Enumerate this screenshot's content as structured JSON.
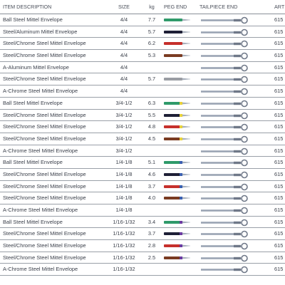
{
  "header": {
    "desc": "ITEM DESCRIPTION",
    "size": "SIZE",
    "kg": "kg",
    "peg": "PEG END",
    "tail": "TAILPIECE END",
    "art": "ART"
  },
  "rows": [
    {
      "desc": "Ball Steel Mittel Envelope",
      "size": "4/4",
      "kg": "7.7",
      "peg_color": "#2f9a6a",
      "art": "615"
    },
    {
      "desc": "Steel/Aluminum Mittel Envelope",
      "size": "4/4",
      "kg": "5.7",
      "peg_color": "#1e1f36",
      "art": "615"
    },
    {
      "desc": "Steel/Chrome Steel Mittel Envelope",
      "size": "4/4",
      "kg": "6.2",
      "peg_color": "#c6302c",
      "art": "615"
    },
    {
      "desc": "Steel/Chrome Steel Mittel Envelope",
      "size": "4/4",
      "kg": "5.3",
      "peg_color": "#7a3b22",
      "art": "615"
    },
    {
      "desc": "A-Aluminum Mittel Envelope",
      "size": "4/4",
      "kg": "",
      "peg_color": "",
      "art": "615"
    },
    {
      "desc": "Steel/Chrome Steel Mittel Envelope",
      "size": "4/4",
      "kg": "5.7",
      "peg_color": "#9a9da3",
      "art": "615"
    },
    {
      "desc": "A-Chrome Steel Mittel Envelope",
      "size": "4/4",
      "kg": "",
      "peg_color": "",
      "art": "615"
    },
    {
      "desc": "Ball Steel Mittel Envelope",
      "size": "3/4-1/2",
      "kg": "6.3",
      "peg_color": "#2f9a6a",
      "peg_band": "#e8d23a",
      "art": "615"
    },
    {
      "desc": "Steel/Chrome Steel Mittel Envelope",
      "size": "3/4-1/2",
      "kg": "5.5",
      "peg_color": "#1e1f36",
      "peg_band": "#e8d23a",
      "art": "615"
    },
    {
      "desc": "Steel/Chrome Steel Mittel Envelope",
      "size": "3/4-1/2",
      "kg": "4.8",
      "peg_color": "#c6302c",
      "peg_band": "#e8d23a",
      "art": "615"
    },
    {
      "desc": "Steel/Chrome Steel Mittel Envelope",
      "size": "3/4-1/2",
      "kg": "4.5",
      "peg_color": "#7a3b22",
      "peg_band": "#e8d23a",
      "art": "615"
    },
    {
      "desc": "A-Chrome Steel Mittel Envelope",
      "size": "3/4-1/2",
      "kg": "",
      "peg_color": "",
      "art": "615"
    },
    {
      "desc": "Ball Steel Mittel Envelope",
      "size": "1/4-1/8",
      "kg": "5.1",
      "peg_color": "#2f9a6a",
      "peg_band": "#3a5fb0",
      "art": "615"
    },
    {
      "desc": "Steel/Chrome Steel Mittel Envelope",
      "size": "1/4-1/8",
      "kg": "4.6",
      "peg_color": "#1e1f36",
      "peg_band": "#3a5fb0",
      "art": "615"
    },
    {
      "desc": "Steel/Chrome Steel Mittel Envelope",
      "size": "1/4-1/8",
      "kg": "3.7",
      "peg_color": "#c6302c",
      "peg_band": "#3a5fb0",
      "art": "615"
    },
    {
      "desc": "Steel/Chrome Steel Mittel Envelope",
      "size": "1/4-1/8",
      "kg": "4.0",
      "peg_color": "#7a3b22",
      "peg_band": "#3a5fb0",
      "art": "615"
    },
    {
      "desc": "A-Chrome Steel Mittel Envelope",
      "size": "1/4-1/8",
      "kg": "",
      "peg_color": "",
      "art": "615"
    },
    {
      "desc": "Ball Steel Mittel Envelope",
      "size": "1/16-1/32",
      "kg": "3.4",
      "peg_color": "#2f9a6a",
      "peg_band": "#6a3aa0",
      "art": "615"
    },
    {
      "desc": "Steel/Chrome Steel Mittel Envelope",
      "size": "1/16-1/32",
      "kg": "3.7",
      "peg_color": "#1e1f36",
      "peg_band": "#6a3aa0",
      "art": "615"
    },
    {
      "desc": "Steel/Chrome Steel Mittel Envelope",
      "size": "1/16-1/32",
      "kg": "2.8",
      "peg_color": "#c6302c",
      "peg_band": "#6a3aa0",
      "art": "615"
    },
    {
      "desc": "Steel/Chrome Steel Mittel Envelope",
      "size": "1/16-1/32",
      "kg": "2.5",
      "peg_color": "#7a3b22",
      "peg_band": "#6a3aa0",
      "art": "615"
    },
    {
      "desc": "A-Chrome Steel Mittel Envelope",
      "size": "1/16-1/32",
      "kg": "",
      "peg_color": "",
      "art": "615"
    }
  ]
}
